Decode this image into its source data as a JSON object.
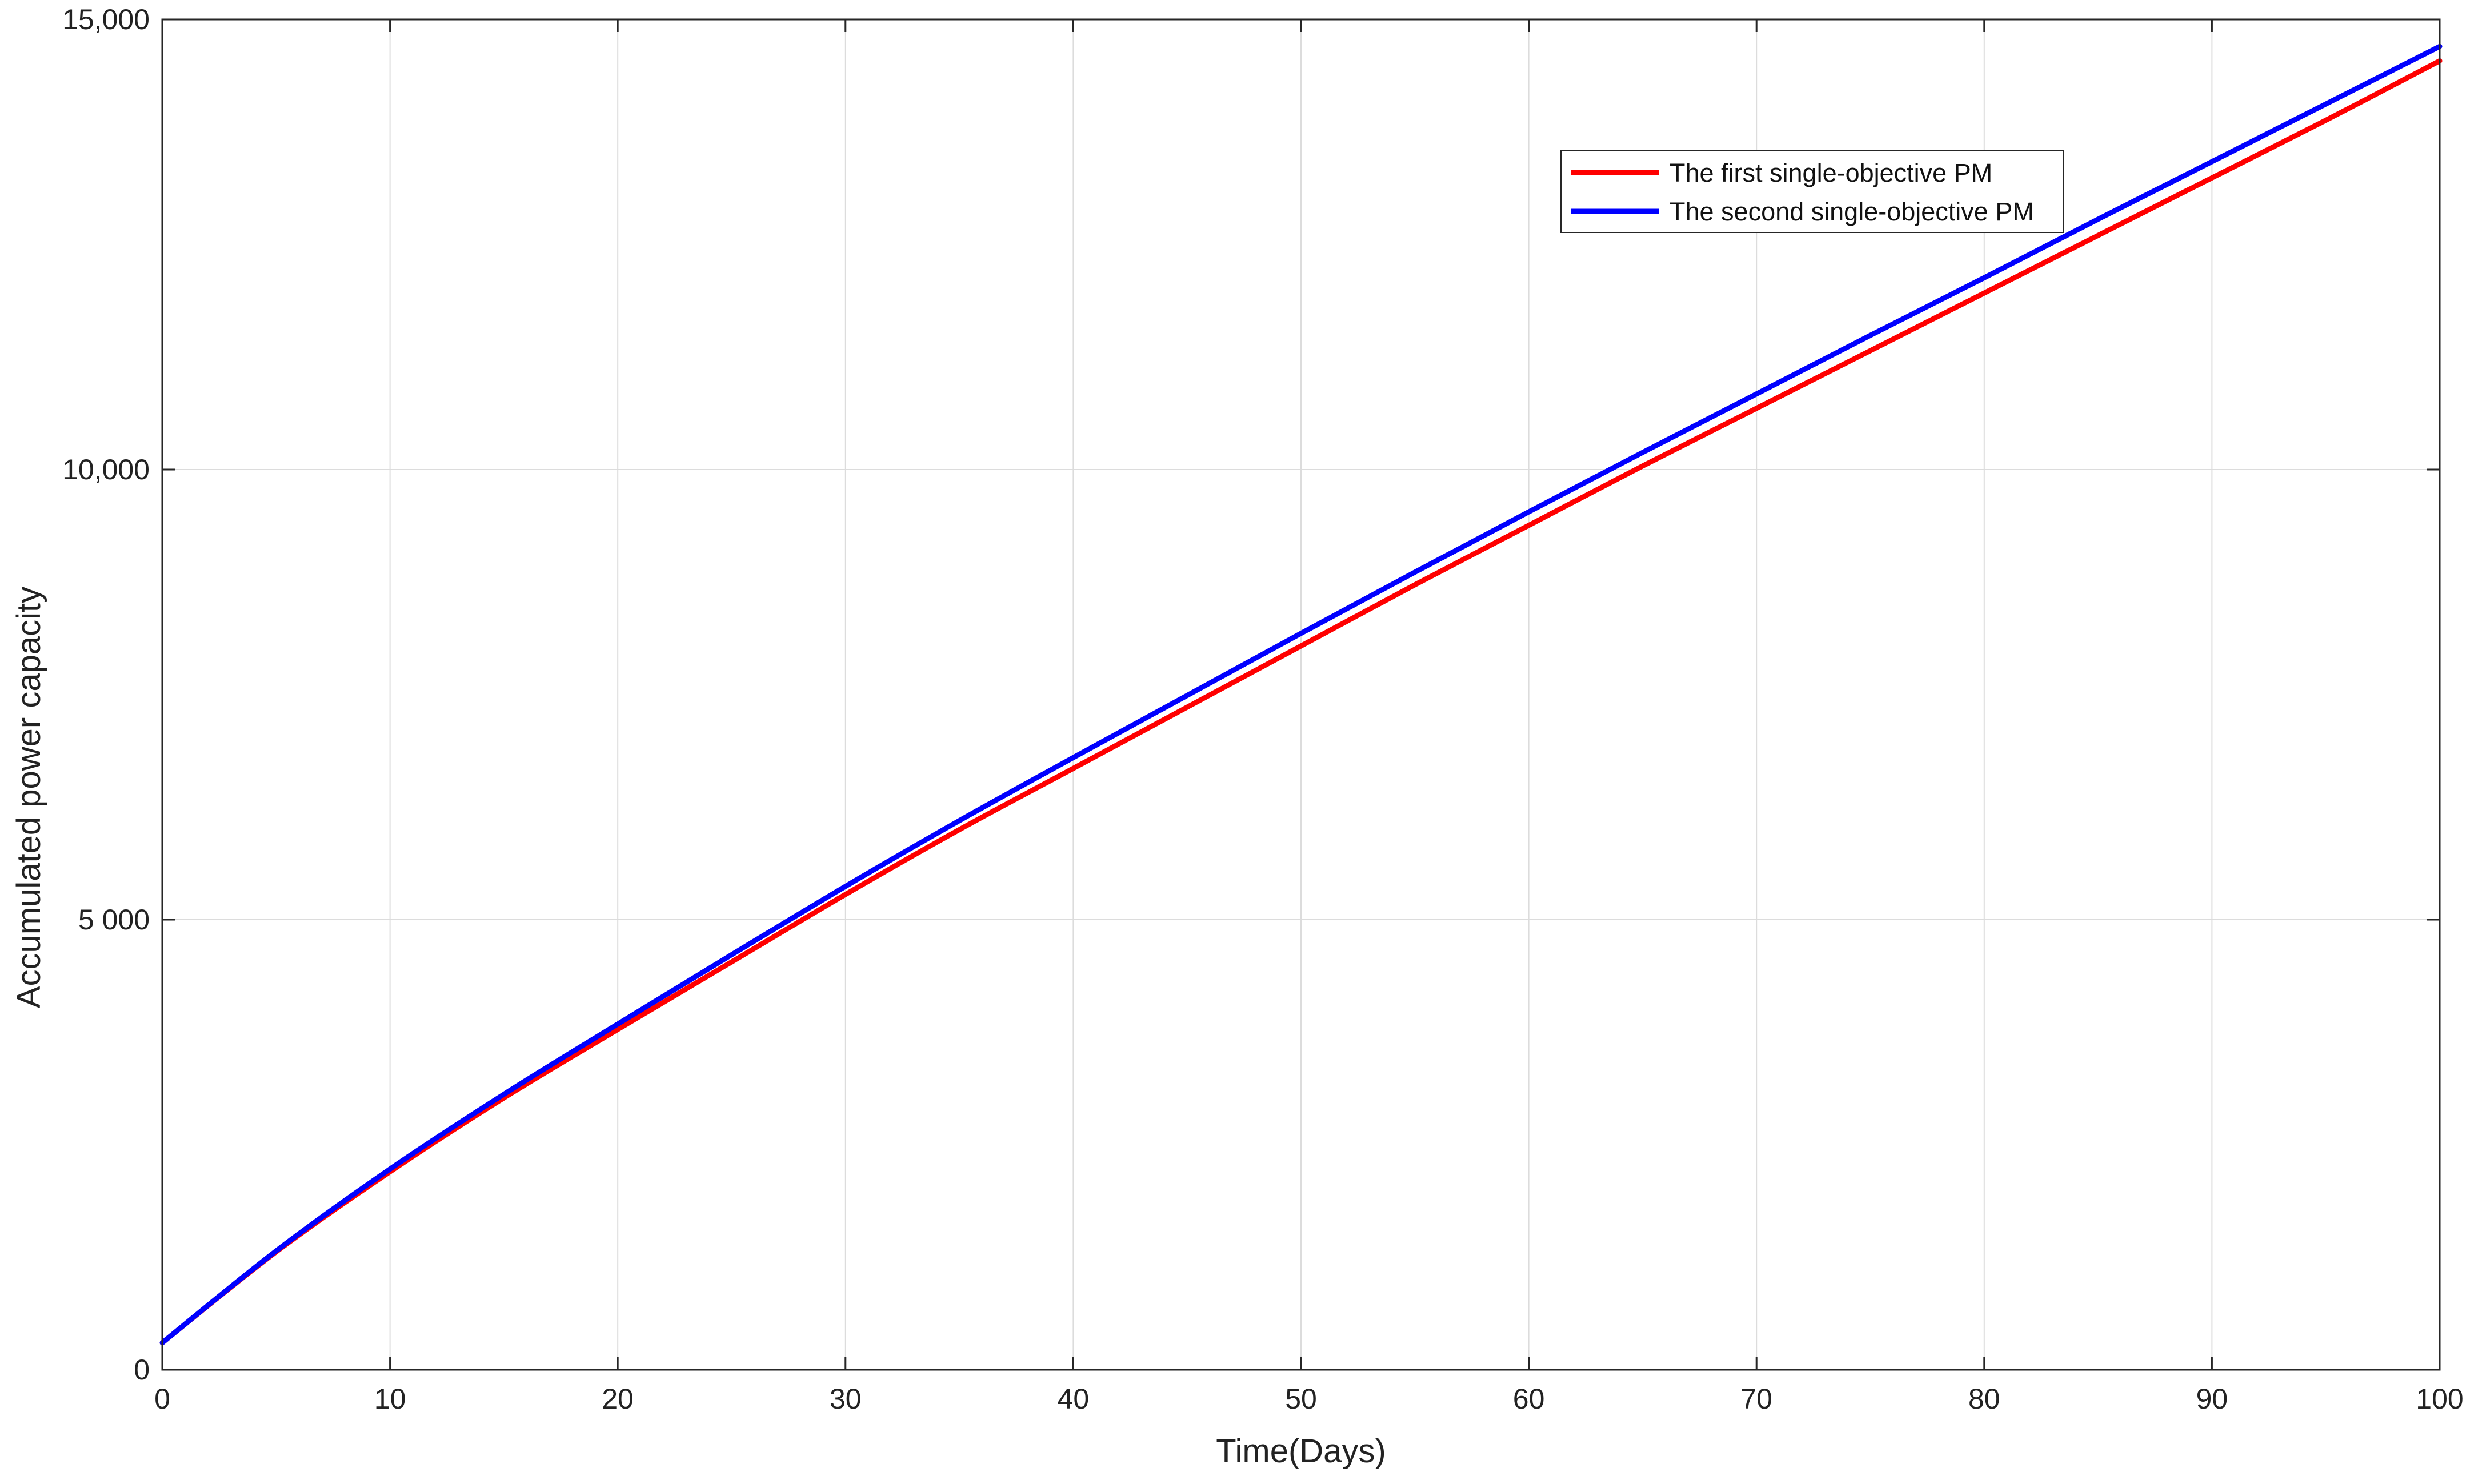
{
  "chart_data": {
    "type": "line",
    "title": "",
    "xlabel": "Time(Days)",
    "ylabel": "Accumulated power capacity",
    "xlim": [
      0,
      100
    ],
    "ylim": [
      0,
      15000
    ],
    "x_ticks": [
      0,
      10,
      20,
      30,
      40,
      50,
      60,
      70,
      80,
      90,
      100
    ],
    "x_tick_labels": [
      "0",
      "10",
      "20",
      "30",
      "40",
      "50",
      "60",
      "70",
      "80",
      "90",
      "100"
    ],
    "y_ticks": [
      0,
      5000,
      10000,
      15000
    ],
    "y_tick_labels": [
      "0",
      "5 000",
      "10,000",
      "15,000"
    ],
    "grid": true,
    "legend_position": "top-right",
    "x": [
      0,
      5,
      10,
      15,
      20,
      25,
      30,
      35,
      40,
      45,
      50,
      55,
      60,
      65,
      70,
      75,
      80,
      85,
      90,
      95,
      100
    ],
    "series": [
      {
        "name": "The first single-objective PM",
        "color": "#ff0000",
        "values": [
          300,
          1310,
          2200,
          3020,
          3780,
          4530,
          5280,
          6000,
          6680,
          7360,
          8040,
          8720,
          9380,
          10040,
          10680,
          11320,
          11960,
          12600,
          13240,
          13880,
          14540
        ]
      },
      {
        "name": "The second single-objective PM",
        "color": "#0000ff",
        "values": [
          300,
          1320,
          2230,
          3060,
          3840,
          4610,
          5370,
          6100,
          6800,
          7490,
          8180,
          8860,
          9530,
          10190,
          10840,
          11490,
          12130,
          12780,
          13420,
          14060,
          14700
        ]
      }
    ]
  }
}
